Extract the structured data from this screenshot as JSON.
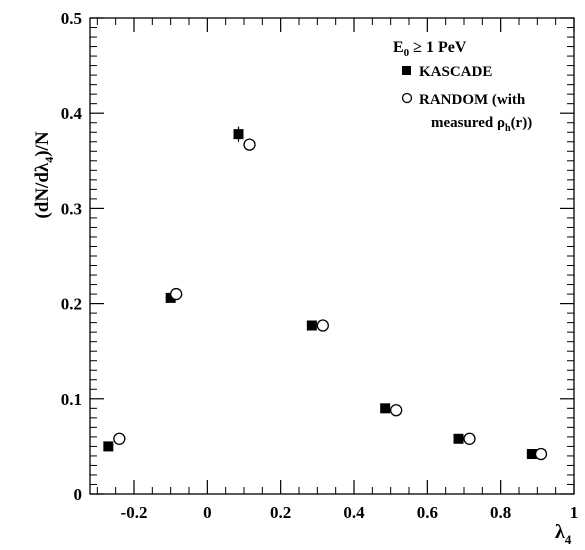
{
  "chart_data": {
    "type": "scatter",
    "title": "",
    "xlabel": "λ",
    "xlabel_sub": "4",
    "ylabel_parts": [
      "(dN/dλ",
      "4",
      ")/N"
    ],
    "xlim": [
      -0.32,
      1.0
    ],
    "ylim": [
      0,
      0.5
    ],
    "x_ticks": [
      -0.2,
      0,
      0.2,
      0.4,
      0.6,
      0.8,
      1
    ],
    "x_tick_labels": [
      "-0.2",
      "0",
      "0.2",
      "0.4",
      "0.6",
      "0.8",
      "1"
    ],
    "y_ticks": [
      0,
      0.1,
      0.2,
      0.3,
      0.4,
      0.5
    ],
    "y_tick_labels": [
      "0",
      "0.1",
      "0.2",
      "0.3",
      "0.4",
      "0.5"
    ],
    "grid": false,
    "legend_position": "top-right",
    "legend_title_parts": [
      "E",
      "0",
      " ≥ 1 PeV"
    ],
    "series": [
      {
        "name": "KASCADE",
        "marker": "filled-square",
        "color": "#000000",
        "x": [
          -0.27,
          -0.1,
          0.085,
          0.285,
          0.485,
          0.685,
          0.885
        ],
        "y": [
          0.05,
          0.206,
          0.378,
          0.177,
          0.09,
          0.058,
          0.042
        ],
        "err": [
          0.002,
          0.004,
          0.008,
          0.003,
          0.003,
          0.002,
          0.002
        ]
      },
      {
        "name": "RANDOM (with measured ρh(r))",
        "label_line1": "RANDOM (with",
        "label_line2_parts": [
          "measured ρ",
          "h",
          "(r))"
        ],
        "marker": "open-circle",
        "color": "#000000",
        "x": [
          -0.24,
          -0.085,
          0.115,
          0.315,
          0.515,
          0.715,
          0.91
        ],
        "y": [
          0.058,
          0.21,
          0.367,
          0.177,
          0.088,
          0.058,
          0.042
        ],
        "err": [
          0,
          0,
          0,
          0,
          0,
          0,
          0
        ]
      }
    ]
  }
}
